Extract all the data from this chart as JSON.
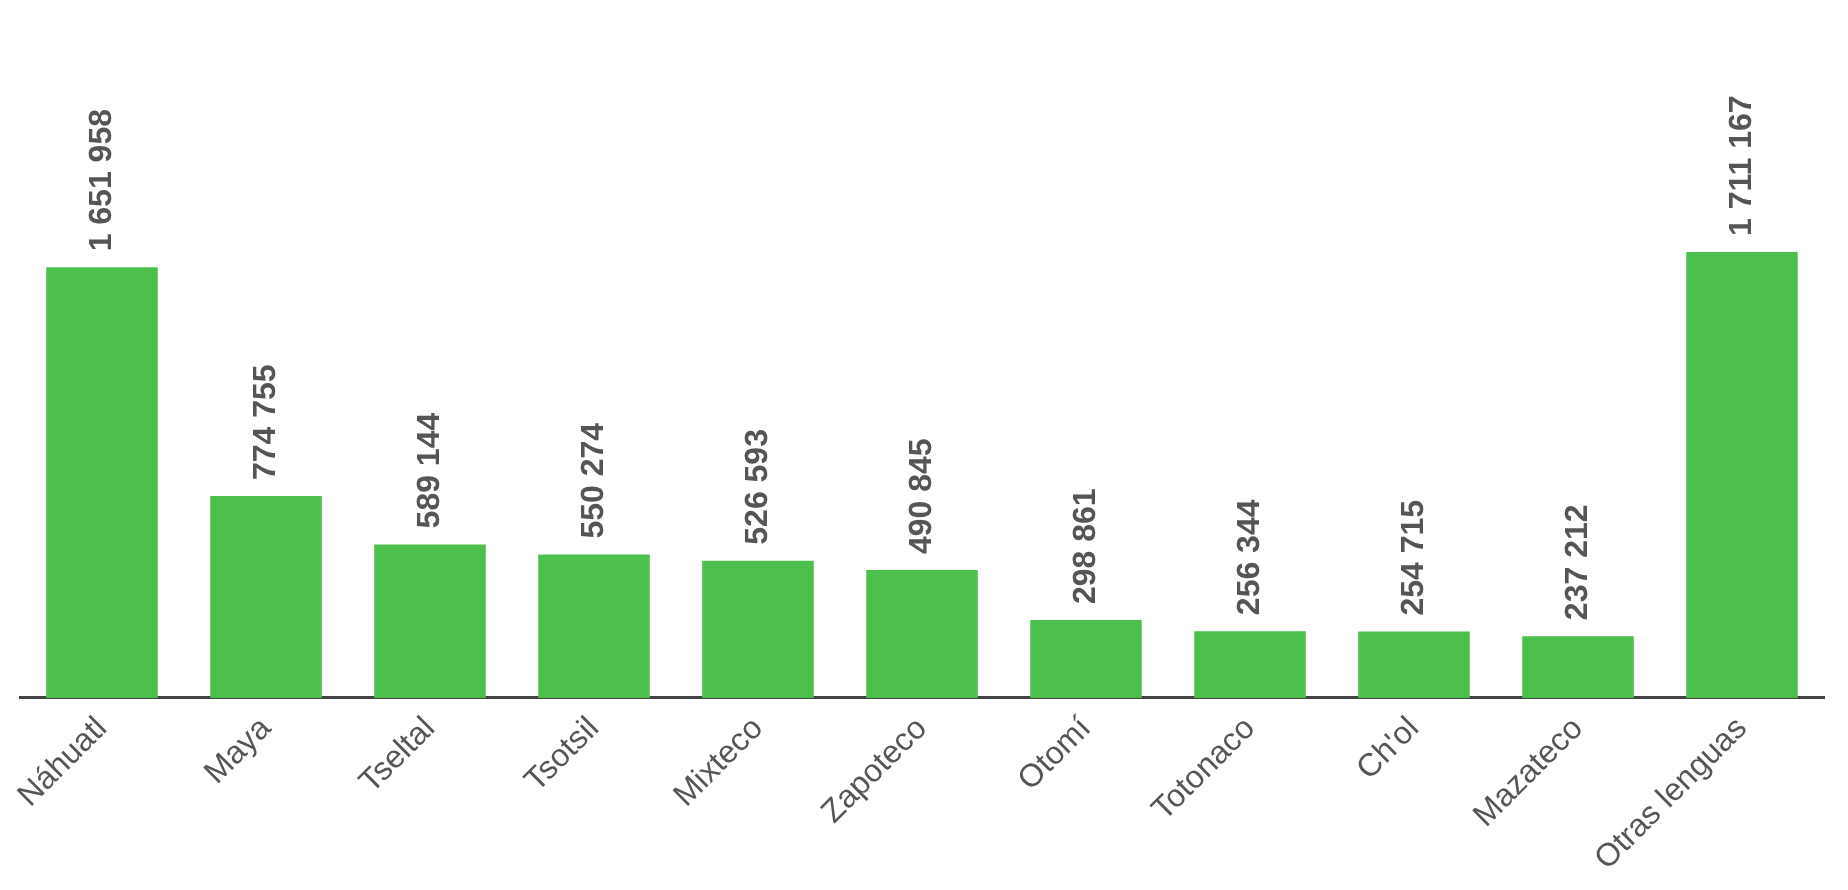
{
  "chart_data": {
    "type": "bar",
    "categories": [
      "Náhuatl",
      "Maya",
      "Tseltal",
      "Tsotsil",
      "Mixteco",
      "Zapoteco",
      "Otomí",
      "Totonaco",
      "Ch'ol",
      "Mazateco",
      "Otras lenguas"
    ],
    "values": [
      1651958,
      774755,
      589144,
      550274,
      526593,
      490845,
      298861,
      256344,
      254715,
      237212,
      1711167
    ],
    "value_labels": [
      "1 651 958",
      "774 755",
      "589 144",
      "550 274",
      "526 593",
      "490 845",
      "298 861",
      "256 344",
      "254 715",
      "237 212",
      "1 711 167"
    ],
    "color": "#4cbf4c",
    "grid": false,
    "legend": false
  }
}
